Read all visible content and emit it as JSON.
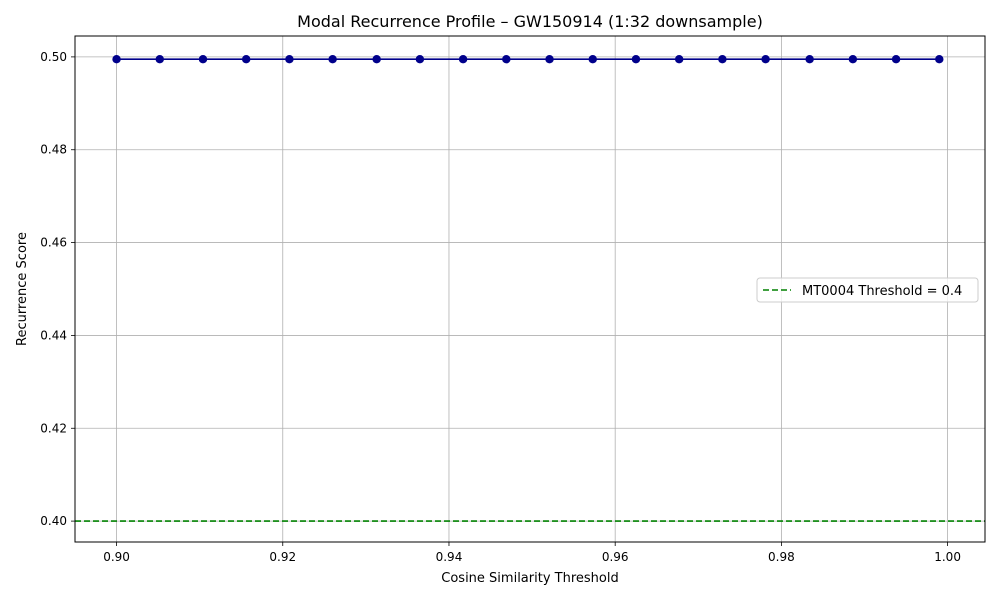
{
  "chart_data": {
    "type": "line",
    "title": "Modal Recurrence Profile – GW150914 (1:32 downsample)",
    "xlabel": "Cosine Similarity Threshold",
    "ylabel": "Recurrence Score",
    "xlim": [
      0.895,
      1.0045
    ],
    "ylim": [
      0.3955,
      0.5045
    ],
    "x_ticks": [
      "0.90",
      "0.92",
      "0.94",
      "0.96",
      "0.98",
      "1.00"
    ],
    "x_tick_values": [
      0.9,
      0.92,
      0.94,
      0.96,
      0.98,
      1.0
    ],
    "y_ticks": [
      "0.40",
      "0.42",
      "0.44",
      "0.46",
      "0.48",
      "0.50"
    ],
    "y_tick_values": [
      0.4,
      0.42,
      0.44,
      0.46,
      0.48,
      0.5
    ],
    "grid": true,
    "legend_position": "center-right",
    "series": [
      {
        "color": "#00008b",
        "marker": "circle",
        "x": [
          0.9,
          0.9052,
          0.9104,
          0.9156,
          0.9208,
          0.926,
          0.9313,
          0.9365,
          0.9417,
          0.9469,
          0.9521,
          0.9573,
          0.9625,
          0.9677,
          0.9729,
          0.9781,
          0.9834,
          0.9886,
          0.9938,
          0.999
        ],
        "values": [
          0.4995,
          0.4995,
          0.4995,
          0.4995,
          0.4995,
          0.4995,
          0.4995,
          0.4995,
          0.4995,
          0.4995,
          0.4995,
          0.4995,
          0.4995,
          0.4995,
          0.4995,
          0.4995,
          0.4995,
          0.4995,
          0.4995,
          0.4995
        ]
      }
    ],
    "reference_lines": [
      {
        "orientation": "horizontal",
        "y": 0.4,
        "style": "dashed",
        "color": "#008000",
        "label": "MT0004 Threshold = 0.4"
      }
    ]
  }
}
